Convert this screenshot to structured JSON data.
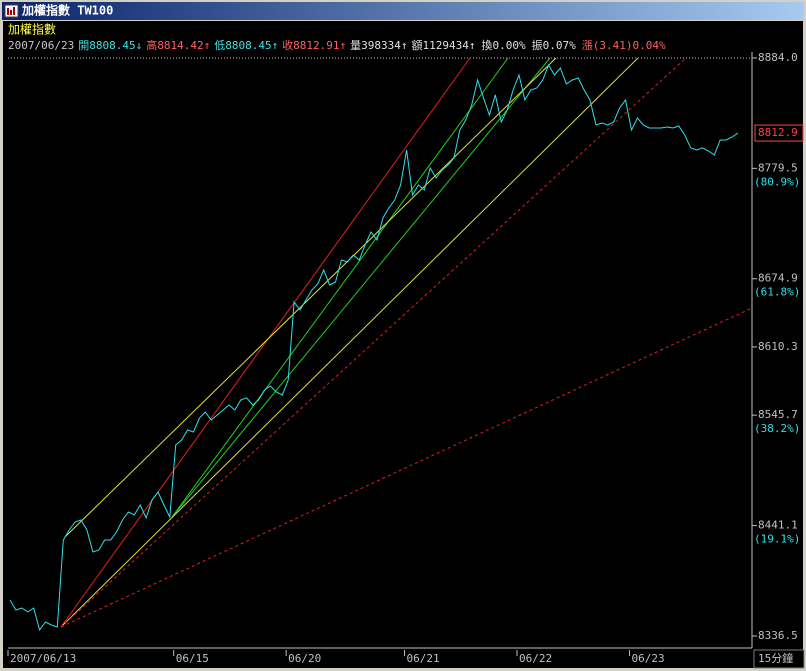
{
  "window_title": "加權指數 TW100",
  "chart_data": {
    "type": "line",
    "title": "加權指數",
    "quote": [
      {
        "text": "2007/06/23",
        "color": "#c8c8c8"
      },
      {
        "text": "開8808.45↓",
        "color": "#40e0e0"
      },
      {
        "text": "高8814.42↑",
        "color": "#ff6060"
      },
      {
        "text": "低8808.45↑",
        "color": "#40e0e0"
      },
      {
        "text": "收8812.91↑",
        "color": "#ff6060"
      },
      {
        "text": "量398334↑",
        "color": "#e0e0e0"
      },
      {
        "text": "額1129434↑",
        "color": "#e0e0e0"
      },
      {
        "text": "換0.00%",
        "color": "#e0e0e0"
      },
      {
        "text": "振0.07%",
        "color": "#e0e0e0"
      },
      {
        "text": "漲(3.41)0.04%",
        "color": "#ff6060"
      }
    ],
    "categories": [
      "2007/06/13",
      null,
      null,
      null,
      null,
      null,
      null,
      null,
      null,
      null,
      null,
      null,
      null,
      null,
      null,
      null,
      null,
      null,
      null,
      null,
      null,
      null,
      null,
      null,
      null,
      null,
      null,
      null,
      "06/15",
      null,
      null,
      null,
      null,
      null,
      null,
      null,
      null,
      null,
      null,
      null,
      null,
      null,
      null,
      null,
      null,
      null,
      null,
      "06/20",
      null,
      null,
      null,
      null,
      null,
      null,
      null,
      null,
      null,
      null,
      null,
      null,
      null,
      null,
      null,
      null,
      null,
      null,
      null,
      "06/21",
      null,
      null,
      null,
      null,
      null,
      null,
      null,
      null,
      null,
      null,
      null,
      null,
      null,
      null,
      null,
      null,
      null,
      null,
      "06/22",
      null,
      null,
      null,
      null,
      null,
      null,
      null,
      null,
      null,
      null,
      null,
      null,
      null,
      null,
      null,
      null,
      null,
      null,
      "06/23",
      null,
      null,
      null,
      null,
      null,
      null,
      null,
      null,
      null,
      null,
      null,
      null,
      null,
      null,
      null,
      null,
      null,
      null
    ],
    "series": [
      {
        "color": "#30e0e8",
        "values": [
          8370.6,
          8361.1,
          8363.0,
          8359.3,
          8363.0,
          8342.2,
          8349.8,
          8346.9,
          8345.0,
          8427.4,
          8436.9,
          8444.5,
          8446.4,
          8436.9,
          8416.1,
          8418.0,
          8427.4,
          8427.4,
          8435.0,
          8446.4,
          8454.0,
          8451.1,
          8460.6,
          8448.3,
          8465.3,
          8472.9,
          8460.6,
          8449.2,
          8517.4,
          8522.2,
          8531.6,
          8529.7,
          8543.0,
          8548.7,
          8541.1,
          8545.8,
          8550.6,
          8555.3,
          8550.6,
          8560.1,
          8562.0,
          8555.3,
          8560.1,
          8569.5,
          8573.3,
          8567.6,
          8564.8,
          8579.0,
          8652.9,
          8645.3,
          8654.8,
          8664.2,
          8669.9,
          8683.2,
          8669.0,
          8671.8,
          8692.7,
          8690.8,
          8697.4,
          8692.7,
          8706.9,
          8719.2,
          8711.6,
          8732.4,
          8741.9,
          8749.5,
          8763.7,
          8796.9,
          8754.2,
          8763.7,
          8759.0,
          8779.8,
          8770.3,
          8777.9,
          8782.6,
          8789.3,
          8815.8,
          8825.3,
          8839.5,
          8863.2,
          8846.1,
          8830.0,
          8849.0,
          8823.4,
          8834.7,
          8853.7,
          8867.9,
          8844.2,
          8853.7,
          8855.6,
          8863.2,
          8877.4,
          8867.9,
          8874.5,
          8859.4,
          8863.2,
          8865.1,
          8853.7,
          8844.2,
          8820.5,
          8822.4,
          8820.5,
          8823.4,
          8836.6,
          8844.2,
          8815.8,
          8827.2,
          8820.5,
          8817.7,
          8817.7,
          8817.7,
          8818.6,
          8817.7,
          8819.6,
          8811.1,
          8798.8,
          8796.9,
          8798.8,
          8795.9,
          8792.1,
          8806.3,
          8806.3,
          8809.2,
          8812.9
        ]
      }
    ],
    "ylim": [
      8336.5,
      8884.0
    ],
    "yticks": [
      {
        "value": 8884.0,
        "label": "8884.0"
      },
      {
        "value": 8779.5,
        "label": "8779.5"
      },
      {
        "value": 8674.9,
        "label": "8674.9"
      },
      {
        "value": 8610.3,
        "label": "8610.3"
      },
      {
        "value": 8545.7,
        "label": "8545.7"
      },
      {
        "value": 8441.1,
        "label": "8441.1"
      },
      {
        "value": 8336.5,
        "label": "8336.5"
      }
    ],
    "fib_levels": [
      {
        "value": 8779.5,
        "label": "(80.9%)"
      },
      {
        "value": 8674.9,
        "label": "(61.8%)"
      },
      {
        "value": 8545.7,
        "label": "(38.2%)"
      },
      {
        "value": 8441.1,
        "label": "(19.1%)"
      }
    ],
    "last_price": {
      "value": 8812.9,
      "label": "8812.9"
    },
    "interval": "15分鐘",
    "grid": false
  }
}
